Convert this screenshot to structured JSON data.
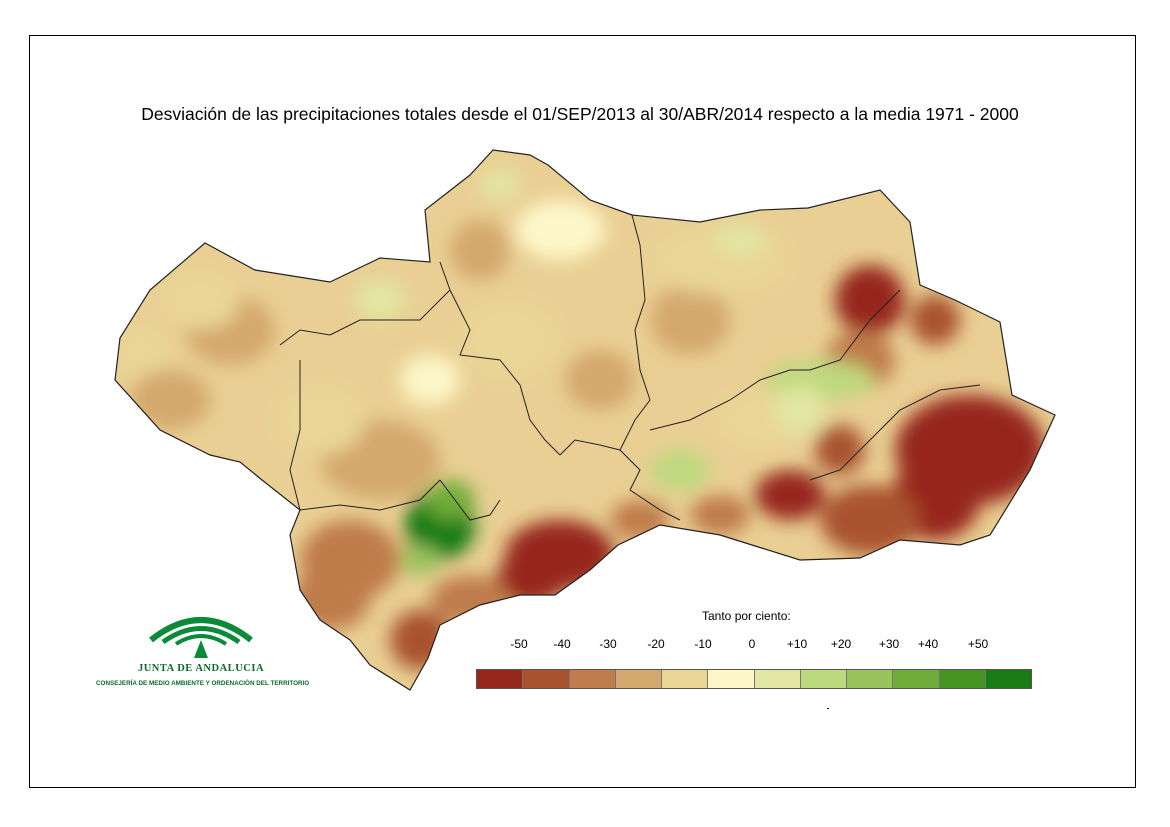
{
  "title": "Desviación de las precipitaciones totales desde el 01/SEP/2013 al 30/ABR/2014 respecto a la media 1971 - 2000",
  "legend": {
    "caption": "Tanto por ciento:",
    "labels": [
      "-50",
      "-40",
      "-30",
      "-20",
      "-10",
      "0",
      "+10",
      "+20",
      "+30",
      "+40",
      "+50"
    ],
    "colors": [
      "#96281b",
      "#a9532d",
      "#bf7c4c",
      "#d4a86e",
      "#e9d596",
      "#fdf7c8",
      "#e2e7a1",
      "#bdd97e",
      "#98c35d",
      "#6fac3a",
      "#459424",
      "#187b14"
    ]
  },
  "logo": {
    "name": "JUNTA DE ANDALUCIA",
    "subtitle": "CONSEJERÍA DE MEDIO AMBIENTE Y ORDENACIÓN DEL TERRITORIO"
  }
}
